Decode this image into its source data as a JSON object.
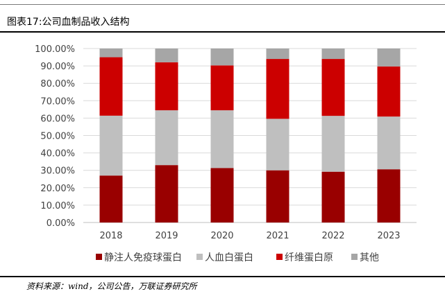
{
  "title": "图表17:公司血制品收入结构",
  "source": "资料来源：wind，公司公告，万联证券研究所",
  "chart_data": {
    "type": "bar",
    "stacked": true,
    "categories": [
      "2018",
      "2019",
      "2020",
      "2021",
      "2022",
      "2023"
    ],
    "series": [
      {
        "name": "静注人免疫球蛋白",
        "color": "#990000",
        "values": [
          27.0,
          33.0,
          31.3,
          30.0,
          29.2,
          30.6
        ]
      },
      {
        "name": "人血白蛋白",
        "color": "#bfbfbf",
        "values": [
          34.4,
          31.5,
          33.2,
          29.6,
          32.1,
          30.3
        ]
      },
      {
        "name": "纤维蛋白原",
        "color": "#cc0000",
        "values": [
          33.6,
          27.6,
          25.8,
          34.4,
          32.7,
          28.8
        ]
      },
      {
        "name": "其他",
        "color": "#a6a6a6",
        "values": [
          5.0,
          7.9,
          9.7,
          6.0,
          6.0,
          10.3
        ]
      }
    ],
    "y_ticks": [
      "0.00%",
      "10.00%",
      "20.00%",
      "30.00%",
      "40.00%",
      "50.00%",
      "60.00%",
      "70.00%",
      "80.00%",
      "90.00%",
      "100.00%"
    ],
    "ylim": [
      0,
      100
    ],
    "grid": true,
    "legend": "bottom"
  }
}
